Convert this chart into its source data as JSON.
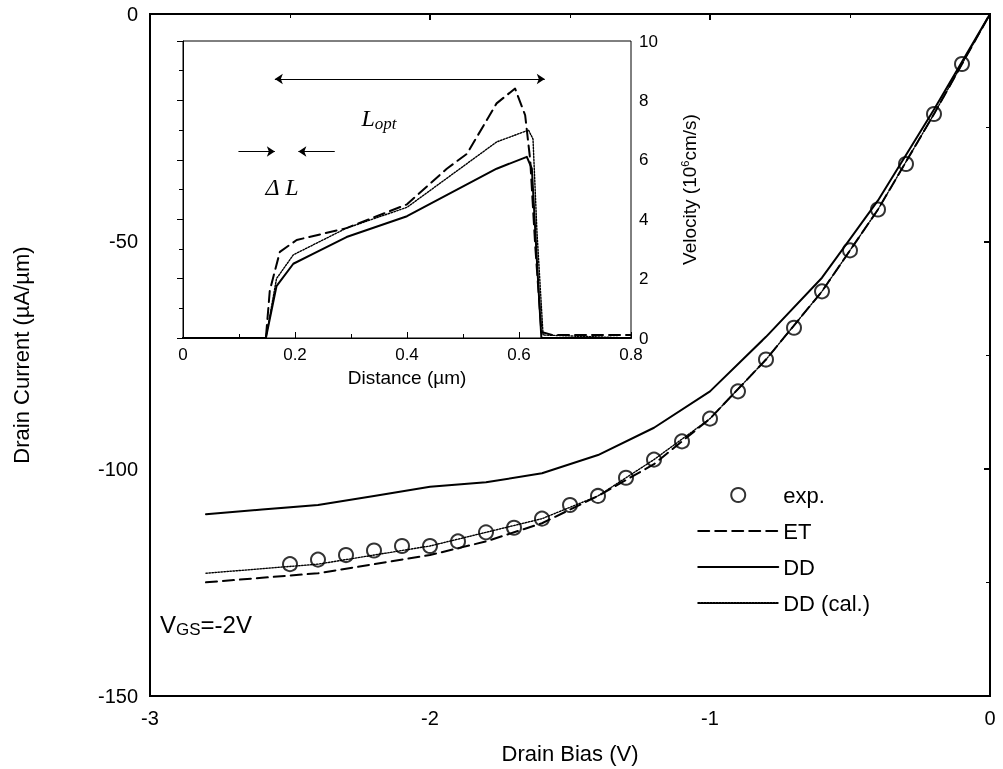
{
  "chart_data": [
    {
      "type": "line",
      "xlabel": "Drain Bias (V)",
      "ylabel": "Drain Current (µA/µm)",
      "xlim": [
        -3,
        0
      ],
      "xticks": [
        -3,
        -2,
        -1,
        0
      ],
      "ylim": [
        -150,
        0
      ],
      "yticks": [
        -150,
        -100,
        -50,
        0
      ],
      "legend": "bottom right",
      "annotations": [
        "V$_{GS}$=-2V"
      ],
      "series": [
        {
          "name": "exp.",
          "type": "scatter",
          "marker": "circle",
          "color": "#000000",
          "x": [
            -2.5,
            -2.4,
            -2.3,
            -2.2,
            -2.1,
            -2.0,
            -1.9,
            -1.8,
            -1.7,
            -1.6,
            -1.5,
            -1.4,
            -1.3,
            -1.2,
            -1.1,
            -1.0,
            -0.9,
            -0.8,
            -0.7,
            -0.6,
            -0.5,
            -0.4,
            -0.3,
            -0.2,
            -0.1
          ],
          "values": [
            -121,
            -120,
            -119,
            -118,
            -117,
            -117,
            -116,
            -114,
            -113,
            -111,
            -108,
            -106,
            -102,
            -98,
            -94,
            -89,
            -83,
            -76,
            -69,
            -61,
            -52,
            -43,
            -33,
            -22,
            -11
          ]
        },
        {
          "name": "ET",
          "type": "line",
          "marker": "none",
          "line_style": "dashed",
          "color": "#000000",
          "x": [
            -2.8,
            -2.6,
            -2.4,
            -2.2,
            -2,
            -1.8,
            -1.6,
            -1.4,
            -1.2,
            -1,
            -0.8,
            -0.6,
            -0.4,
            -0.2,
            0
          ],
          "values": [
            -125,
            -124,
            -123,
            -121,
            -119,
            -116,
            -112,
            -106,
            -99,
            -89,
            -76,
            -61,
            -43,
            -22,
            0
          ]
        },
        {
          "name": "DD",
          "type": "line",
          "marker": "none",
          "line_style": "solid",
          "color": "#000000",
          "x": [
            -2.8,
            -2.6,
            -2.4,
            -2.2,
            -2,
            -1.8,
            -1.6,
            -1.4,
            -1.2,
            -1,
            -0.8,
            -0.6,
            -0.4,
            -0.2,
            0
          ],
          "values": [
            -110,
            -109,
            -108,
            -106,
            -104,
            -103,
            -101,
            -97,
            -91,
            -83,
            -71,
            -58,
            -41,
            -21,
            0
          ]
        },
        {
          "name": "DD (cal.)",
          "type": "line",
          "marker": "none",
          "line_style": "dotted",
          "color": "#000000",
          "x": [
            -2.8,
            -2.6,
            -2.4,
            -2.2,
            -2,
            -1.8,
            -1.6,
            -1.4,
            -1.2,
            -1,
            -0.8,
            -0.6,
            -0.4,
            -0.2,
            0
          ],
          "values": [
            -123,
            -122,
            -121,
            -119,
            -117,
            -114,
            -111,
            -106,
            -98,
            -89,
            -76,
            -61,
            -43,
            -22,
            0
          ]
        }
      ]
    },
    {
      "type": "line",
      "xlabel": "Distance (µm)",
      "ylabel": "Velocity (10$^{6}$cm/s)",
      "xlim": [
        0,
        0.8
      ],
      "xticks": [
        0,
        0.2,
        0.4,
        0.6,
        0.8
      ],
      "ylim": [
        0,
        10
      ],
      "yticks": [
        0,
        2,
        4,
        6,
        8,
        10
      ],
      "annotations": [
        "L$_{opt}$",
        "Δ L"
      ],
      "series": [
        {
          "line_style": "dashed",
          "marker": "none",
          "color": "#000000",
          "x": [
            0,
            0.148,
            0.155,
            0.173,
            0.203,
            0.292,
            0.4,
            0.471,
            0.507,
            0.56,
            0.593,
            0.611,
            0.62,
            0.629,
            0.64,
            0.66,
            0.8
          ],
          "values": [
            0,
            0,
            1.6,
            2.9,
            3.3,
            3.7,
            4.5,
            5.7,
            6.2,
            7.9,
            8.4,
            7.5,
            6.0,
            3.1,
            0.2,
            0.1,
            0.1
          ]
        },
        {
          "line_style": "solid",
          "marker": "none",
          "color": "#000000",
          "x": [
            0,
            0.148,
            0.167,
            0.197,
            0.292,
            0.4,
            0.56,
            0.614,
            0.623,
            0.632,
            0.64,
            0.8
          ],
          "values": [
            0,
            0,
            1.75,
            2.5,
            3.4,
            4.1,
            5.7,
            6.1,
            5.7,
            2.6,
            0,
            0
          ]
        },
        {
          "line_style": "dotted",
          "marker": "none",
          "color": "#000000",
          "x": [
            0,
            0.148,
            0.167,
            0.197,
            0.292,
            0.4,
            0.56,
            0.617,
            0.625,
            0.632,
            0.643,
            0.8
          ],
          "values": [
            0,
            0,
            2.0,
            2.8,
            3.7,
            4.4,
            6.6,
            7.0,
            6.7,
            3.6,
            0.1,
            0
          ]
        }
      ]
    }
  ]
}
